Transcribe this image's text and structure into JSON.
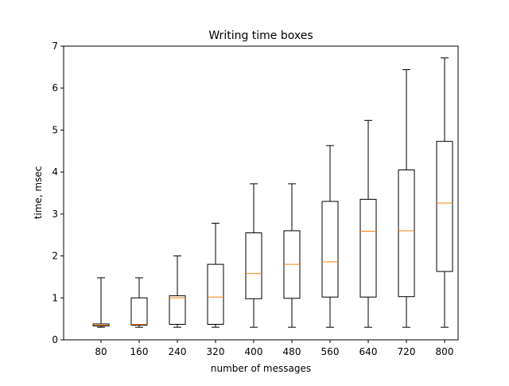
{
  "chart_data": {
    "type": "box",
    "title": "Writing time boxes",
    "xlabel": "number of messages",
    "ylabel": "time, msec",
    "ylim": [
      0,
      7
    ],
    "yticks": [
      0,
      1,
      2,
      3,
      4,
      5,
      6,
      7
    ],
    "categories": [
      "80",
      "160",
      "240",
      "320",
      "400",
      "480",
      "560",
      "640",
      "720",
      "800"
    ],
    "boxes": [
      {
        "whisker_low": 0.3,
        "q1": 0.33,
        "median": 0.35,
        "q3": 0.38,
        "whisker_high": 1.48
      },
      {
        "whisker_low": 0.3,
        "q1": 0.35,
        "median": 0.37,
        "q3": 1.0,
        "whisker_high": 1.48
      },
      {
        "whisker_low": 0.3,
        "q1": 0.37,
        "median": 1.0,
        "q3": 1.05,
        "whisker_high": 2.0
      },
      {
        "whisker_low": 0.3,
        "q1": 0.37,
        "median": 1.02,
        "q3": 1.8,
        "whisker_high": 2.78
      },
      {
        "whisker_low": 0.3,
        "q1": 0.98,
        "median": 1.58,
        "q3": 2.55,
        "whisker_high": 3.72
      },
      {
        "whisker_low": 0.3,
        "q1": 0.99,
        "median": 1.8,
        "q3": 2.6,
        "whisker_high": 3.72
      },
      {
        "whisker_low": 0.3,
        "q1": 1.02,
        "median": 1.86,
        "q3": 3.3,
        "whisker_high": 4.63
      },
      {
        "whisker_low": 0.3,
        "q1": 1.02,
        "median": 2.59,
        "q3": 3.35,
        "whisker_high": 5.23
      },
      {
        "whisker_low": 0.3,
        "q1": 1.03,
        "median": 2.6,
        "q3": 4.05,
        "whisker_high": 6.44
      },
      {
        "whisker_low": 0.3,
        "q1": 1.63,
        "median": 3.26,
        "q3": 4.73,
        "whisker_high": 6.72
      }
    ],
    "colors": {
      "box": "#000000",
      "median": "#ff7f0e",
      "background": "#ffffff"
    },
    "grid": false,
    "legend": false
  }
}
